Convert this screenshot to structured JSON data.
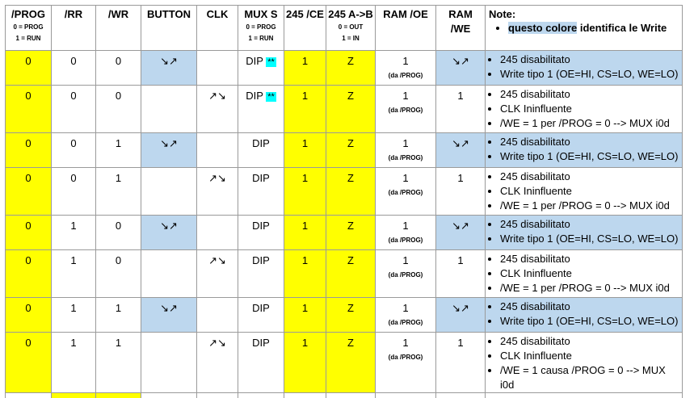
{
  "headers": {
    "prog": "/PROG",
    "prog_sub1": "0 = PROG",
    "prog_sub2": "1 = RUN",
    "rr": "/RR",
    "wr": "/WR",
    "button": "BUTTON",
    "clk": "CLK",
    "muxs": "MUX S",
    "muxs_sub1": "0 = PROG",
    "muxs_sub2": "1 = RUN",
    "ce245": "245 /CE",
    "ab245": "245 A->B",
    "ab245_sub1": "0 = OUT",
    "ab245_sub2": "1 = IN",
    "ramoe": "RAM /OE",
    "ramwe1": "RAM",
    "ramwe2": "/WE",
    "note_title": "Note:",
    "note_highlight": "questo colore",
    "note_rest": " identifica le Write"
  },
  "da_prog": "(da /PROG)",
  "stars": "**",
  "rows": [
    {
      "prog": "0",
      "rr": "0",
      "wr": "0",
      "button": "↘↗",
      "clk": "",
      "mux": "DIP",
      "stars": true,
      "ce": "1",
      "ab": "Z",
      "oe": "1",
      "we": "↘↗",
      "notes": [
        "245 disabilitato",
        "Write tipo 1 (OE=HI, CS=LO, WE=LO)"
      ]
    },
    {
      "prog": "0",
      "rr": "0",
      "wr": "0",
      "button": "",
      "clk": "↗↘",
      "mux": "DIP",
      "stars": true,
      "ce": "1",
      "ab": "Z",
      "oe": "1",
      "we": "1",
      "notes": [
        "245 disabilitato",
        "CLK Ininfluente",
        "/WE = 1 per /PROG = 0 --> MUX i0d"
      ]
    },
    {
      "prog": "0",
      "rr": "0",
      "wr": "1",
      "button": "↘↗",
      "clk": "",
      "mux": "DIP",
      "stars": false,
      "ce": "1",
      "ab": "Z",
      "oe": "1",
      "we": "↘↗",
      "notes": [
        "245 disabilitato",
        "Write tipo 1 (OE=HI, CS=LO, WE=LO)"
      ]
    },
    {
      "prog": "0",
      "rr": "0",
      "wr": "1",
      "button": "",
      "clk": "↗↘",
      "mux": "DIP",
      "stars": false,
      "ce": "1",
      "ab": "Z",
      "oe": "1",
      "we": "1",
      "notes": [
        "245 disabilitato",
        "CLK Ininfluente",
        "/WE = 1 per /PROG = 0 --> MUX i0d"
      ]
    },
    {
      "prog": "0",
      "rr": "1",
      "wr": "0",
      "button": "↘↗",
      "clk": "",
      "mux": "DIP",
      "stars": false,
      "ce": "1",
      "ab": "Z",
      "oe": "1",
      "we": "↘↗",
      "notes": [
        "245 disabilitato",
        "Write tipo 1 (OE=HI, CS=LO, WE=LO)"
      ]
    },
    {
      "prog": "0",
      "rr": "1",
      "wr": "0",
      "button": "",
      "clk": "↗↘",
      "mux": "DIP",
      "stars": false,
      "ce": "1",
      "ab": "Z",
      "oe": "1",
      "we": "1",
      "notes": [
        "245 disabilitato",
        "CLK Ininfluente",
        "/WE = 1 per /PROG = 0 --> MUX i0d"
      ]
    },
    {
      "prog": "0",
      "rr": "1",
      "wr": "1",
      "button": "↘↗",
      "clk": "",
      "mux": "DIP",
      "stars": false,
      "ce": "1",
      "ab": "Z",
      "oe": "1",
      "we": "↘↗",
      "notes": [
        "245 disabilitato",
        "Write tipo 1 (OE=HI, CS=LO, WE=LO)"
      ]
    },
    {
      "prog": "0",
      "rr": "1",
      "wr": "1",
      "button": "",
      "clk": "↗↘",
      "mux": "DIP",
      "stars": false,
      "ce": "1",
      "ab": "Z",
      "oe": "1",
      "we": "1",
      "notes": [
        "245 disabilitato",
        "CLK Ininfluente",
        "/WE = 1 causa /PROG = 0 --> MUX i0d"
      ]
    }
  ],
  "colors": {
    "yellow": "#ffff00",
    "blue": "#bdd7ee",
    "cyan": "#00ffff"
  }
}
